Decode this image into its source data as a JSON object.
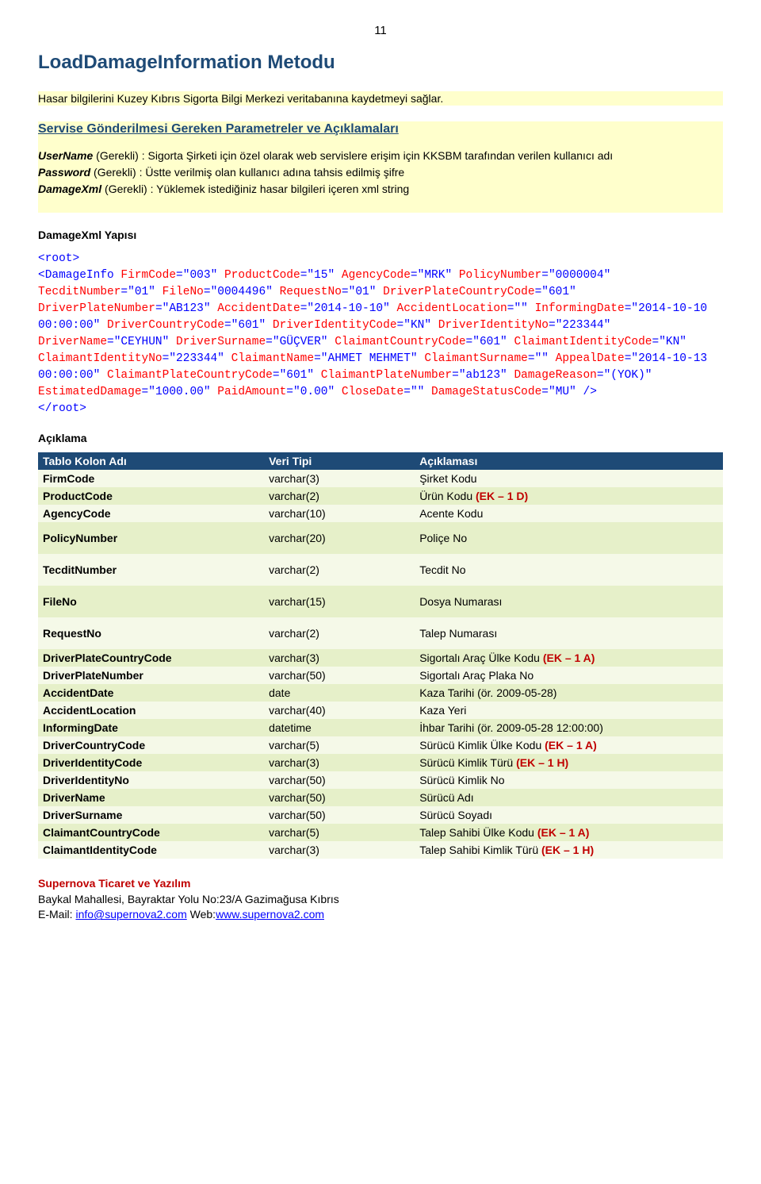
{
  "pageNumber": "11",
  "title": "LoadDamageInformation Metodu",
  "intro": "Hasar bilgilerini Kuzey Kıbrıs Sigorta Bilgi Merkezi veritabanına kaydetmeyi sağlar.",
  "sectionTitle": "Servise Gönderilmesi Gereken Parametreler ve Açıklamaları",
  "params": {
    "userName": {
      "label": "UserName",
      "note": "(Gerekli) : Sigorta Şirketi için özel olarak web servislere erişim için KKSBM tarafından verilen kullanıcı adı"
    },
    "password": {
      "label": "Password",
      "note": "(Gerekli) : Üstte verilmiş olan kullanıcı adına tahsis edilmiş şifre"
    },
    "damageXml": {
      "label": "DamageXml",
      "note": "(Gerekli) : Yüklemek istediğiniz hasar bilgileri içeren xml string"
    }
  },
  "structureHeader": "DamageXml Yapısı",
  "xml": {
    "openRoot": "<root>",
    "tagName": "DamageInfo",
    "attrs": [
      {
        "n": "FirmCode",
        "v": "003"
      },
      {
        "n": "ProductCode",
        "v": "15"
      },
      {
        "n": "AgencyCode",
        "v": "MRK"
      },
      {
        "n": "PolicyNumber",
        "v": "0000004"
      },
      {
        "n": "TecditNumber",
        "v": "01"
      },
      {
        "n": "FileNo",
        "v": "0004496"
      },
      {
        "n": "RequestNo",
        "v": "01"
      },
      {
        "n": "DriverPlateCountryCode",
        "v": "601"
      },
      {
        "n": "DriverPlateNumber",
        "v": "AB123"
      },
      {
        "n": "AccidentDate",
        "v": "2014-10-10"
      },
      {
        "n": "AccidentLocation",
        "v": ""
      },
      {
        "n": "InformingDate",
        "v": "2014-10-10 00:00:00"
      },
      {
        "n": "DriverCountryCode",
        "v": "601"
      },
      {
        "n": "DriverIdentityCode",
        "v": "KN"
      },
      {
        "n": "DriverIdentityNo",
        "v": "223344"
      },
      {
        "n": "DriverName",
        "v": "CEYHUN"
      },
      {
        "n": "DriverSurname",
        "v": "GÜÇVER"
      },
      {
        "n": "ClaimantCountryCode",
        "v": "601"
      },
      {
        "n": "ClaimantIdentityCode",
        "v": "KN"
      },
      {
        "n": "ClaimantIdentityNo",
        "v": "223344"
      },
      {
        "n": "ClaimantName",
        "v": "AHMET MEHMET"
      },
      {
        "n": "ClaimantSurname",
        "v": ""
      },
      {
        "n": "AppealDate",
        "v": "2014-10-13 00:00:00"
      },
      {
        "n": "ClaimantPlateCountryCode",
        "v": "601"
      },
      {
        "n": "ClaimantPlateNumber",
        "v": "ab123"
      },
      {
        "n": "DamageReason",
        "v": "(YOK)"
      },
      {
        "n": "EstimatedDamage",
        "v": "1000.00"
      },
      {
        "n": "PaidAmount",
        "v": "0.00"
      },
      {
        "n": "CloseDate",
        "v": ""
      },
      {
        "n": "DamageStatusCode",
        "v": "MU"
      }
    ],
    "closeRoot": "</root>"
  },
  "aciklamaHeader": "Açıklama",
  "table": {
    "headers": [
      "Tablo Kolon Adı",
      "Veri Tipi",
      "Açıklaması"
    ],
    "rows": [
      {
        "c": [
          "FirmCode",
          "varchar(3)",
          "Şirket Kodu"
        ]
      },
      {
        "c": [
          "ProductCode",
          "varchar(2)",
          "Ürün Kodu "
        ],
        "red": "(EK – 1 D)"
      },
      {
        "c": [
          "AgencyCode",
          "varchar(10)",
          "Acente Kodu"
        ]
      },
      {
        "c": [
          "PolicyNumber",
          "varchar(20)",
          "Poliçe No"
        ],
        "tall": true
      },
      {
        "c": [
          "TecditNumber",
          "varchar(2)",
          "Tecdit No"
        ],
        "tall": true
      },
      {
        "c": [
          "FileNo",
          "varchar(15)",
          "Dosya Numarası"
        ],
        "tall": true
      },
      {
        "c": [
          "RequestNo",
          "varchar(2)",
          "Talep Numarası"
        ],
        "tall": true
      },
      {
        "c": [
          "DriverPlateCountryCode",
          "varchar(3)",
          "Sigortalı Araç Ülke Kodu "
        ],
        "red": "(EK – 1 A)"
      },
      {
        "c": [
          "DriverPlateNumber",
          "varchar(50)",
          "Sigortalı Araç Plaka No"
        ]
      },
      {
        "c": [
          "AccidentDate",
          "date",
          "Kaza Tarihi (ör. 2009-05-28)"
        ]
      },
      {
        "c": [
          "AccidentLocation",
          "varchar(40)",
          "Kaza Yeri"
        ]
      },
      {
        "c": [
          "InformingDate",
          "datetime",
          "İhbar Tarihi (ör. 2009-05-28 12:00:00)"
        ]
      },
      {
        "c": [
          "DriverCountryCode",
          "varchar(5)",
          "Sürücü Kimlik Ülke Kodu "
        ],
        "red": "(EK – 1 A)"
      },
      {
        "c": [
          "DriverIdentityCode",
          "varchar(3)",
          "Sürücü Kimlik Türü "
        ],
        "red": "(EK – 1 H)"
      },
      {
        "c": [
          "DriverIdentityNo",
          "varchar(50)",
          "Sürücü Kimlik No"
        ]
      },
      {
        "c": [
          "DriverName",
          "varchar(50)",
          "Sürücü Adı"
        ]
      },
      {
        "c": [
          "DriverSurname",
          "varchar(50)",
          "Sürücü Soyadı"
        ]
      },
      {
        "c": [
          "ClaimantCountryCode",
          "varchar(5)",
          "Talep Sahibi Ülke Kodu  "
        ],
        "red": "(EK – 1 A)"
      },
      {
        "c": [
          "ClaimantIdentityCode",
          "varchar(3)",
          "Talep Sahibi Kimlik Türü "
        ],
        "red": "(EK – 1 H)"
      }
    ]
  },
  "footer": {
    "company": "Supernova Ticaret ve Yazılım",
    "address": "Baykal Mahallesi, Bayraktar Yolu No:23/A Gazimağusa Kıbrıs",
    "emailLabel": "E-Mail: ",
    "email": "info@supernova2.com",
    "webLabel": " Web:",
    "web": "www.supernova2.com"
  }
}
